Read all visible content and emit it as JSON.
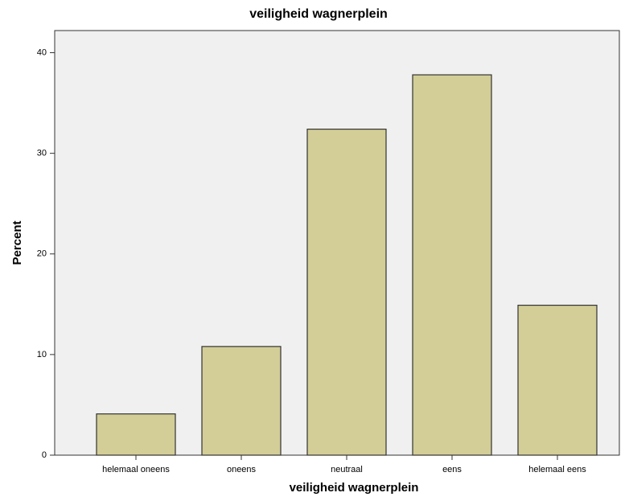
{
  "chart_data": {
    "type": "bar",
    "title": "veiligheid wagnerplein",
    "x_label": "veiligheid wagnerplein",
    "y_label": "Percent",
    "categories": [
      "helemaal oneens",
      "oneens",
      "neutraal",
      "eens",
      "helemaal eens"
    ],
    "values": [
      4.1,
      10.8,
      32.4,
      37.8,
      14.9
    ],
    "color": "#d3ce97",
    "ylim": [
      0,
      42.2
    ],
    "yticks": [
      0,
      10,
      20,
      30,
      40
    ],
    "grid": false
  }
}
